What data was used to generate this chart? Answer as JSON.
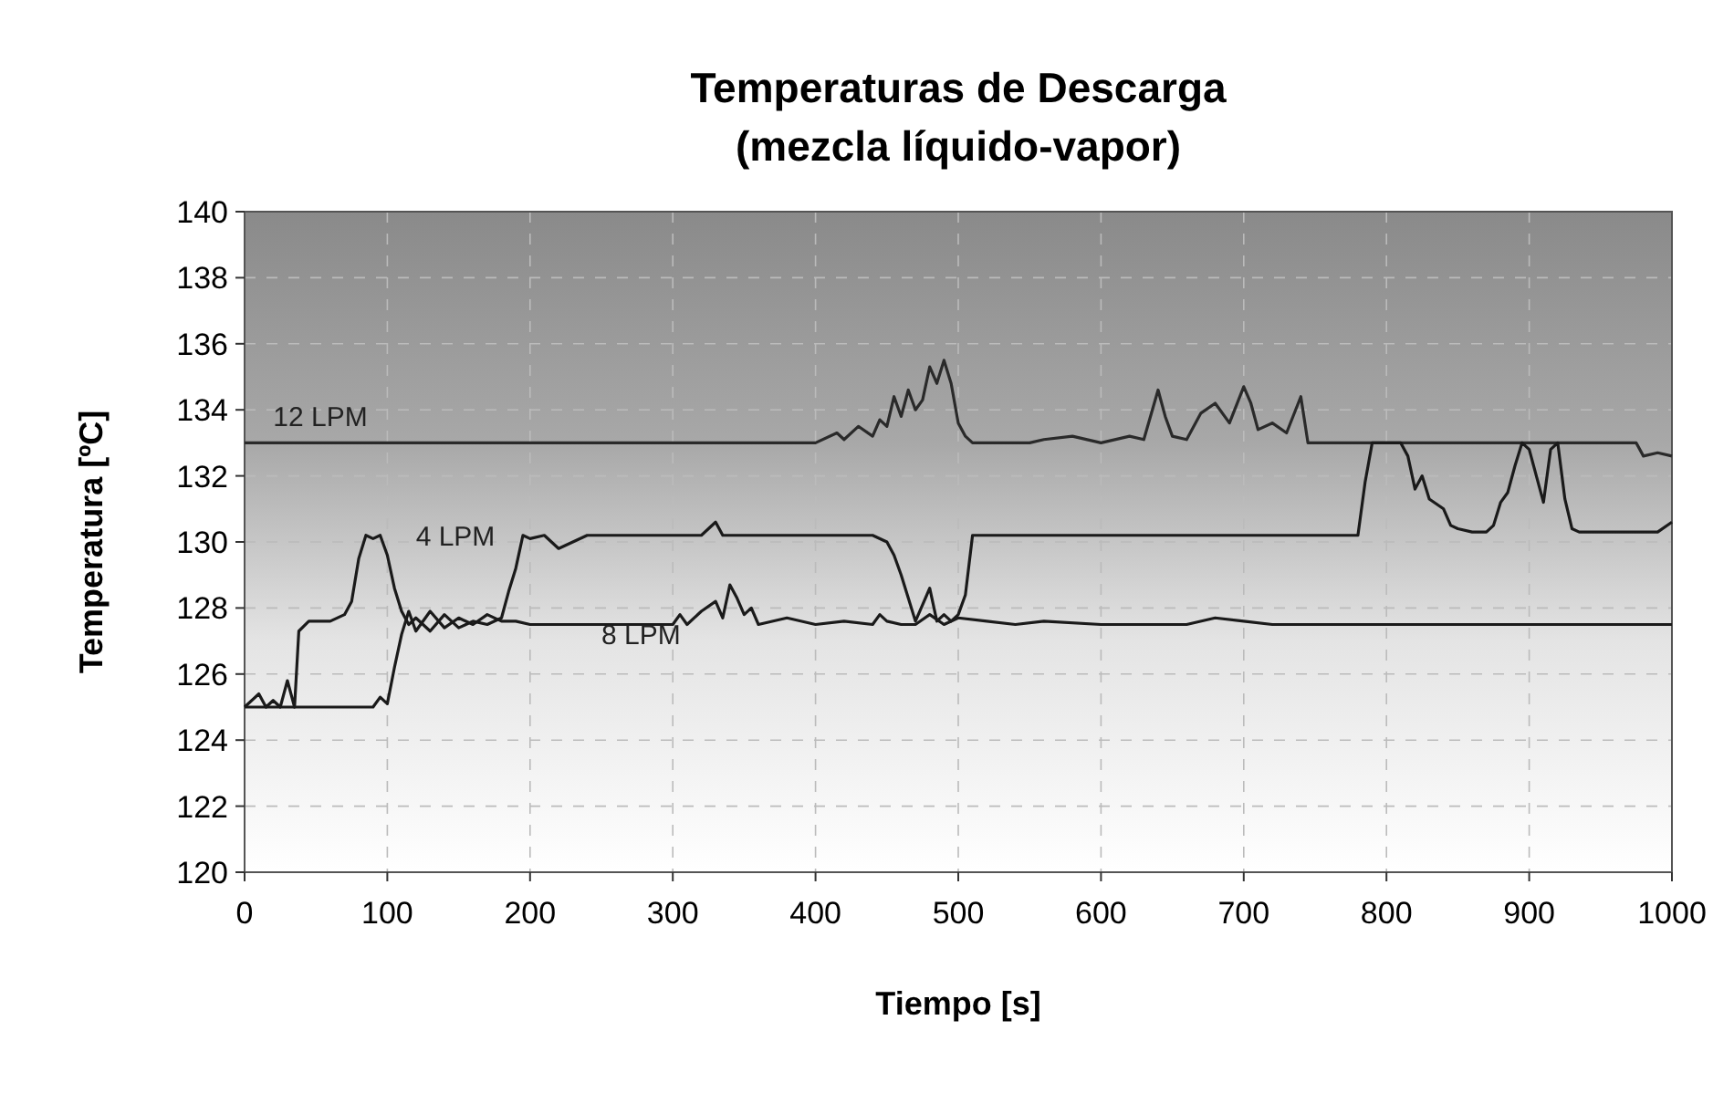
{
  "chart_data": {
    "type": "line",
    "title": "Temperaturas de Descarga",
    "subtitle": "(mezcla líquido-vapor)",
    "xlabel": "Tiempo [s]",
    "ylabel": "Temperatura [ºC]",
    "xlim": [
      0,
      1000
    ],
    "ylim": [
      120,
      140
    ],
    "xticks": [
      0,
      100,
      200,
      300,
      400,
      500,
      600,
      700,
      800,
      900,
      1000
    ],
    "yticks": [
      120,
      122,
      124,
      126,
      128,
      130,
      132,
      134,
      136,
      138,
      140
    ],
    "grid": true,
    "marker": "none",
    "line_style": "solid",
    "series": [
      {
        "name": "12 LPM",
        "color": "#2a2a2a",
        "x": [
          0,
          100,
          200,
          300,
          400,
          415,
          420,
          430,
          440,
          445,
          450,
          455,
          460,
          465,
          470,
          475,
          480,
          485,
          490,
          495,
          500,
          505,
          510,
          520,
          550,
          560,
          580,
          600,
          620,
          630,
          640,
          645,
          650,
          660,
          670,
          680,
          690,
          700,
          705,
          710,
          720,
          730,
          740,
          745,
          750,
          800,
          900,
          975,
          980,
          990,
          1000
        ],
        "values": [
          133,
          133,
          133,
          133,
          133,
          133.3,
          133.1,
          133.5,
          133.2,
          133.7,
          133.5,
          134.4,
          133.8,
          134.6,
          134.0,
          134.3,
          135.3,
          134.8,
          135.5,
          134.8,
          133.6,
          133.2,
          133,
          133,
          133,
          133.1,
          133.2,
          133,
          133.2,
          133.1,
          134.6,
          133.8,
          133.2,
          133.1,
          133.9,
          134.2,
          133.6,
          134.7,
          134.2,
          133.4,
          133.6,
          133.3,
          134.4,
          133,
          133,
          133,
          133,
          133,
          132.6,
          132.7,
          132.6
        ]
      },
      {
        "name": "4 LPM",
        "color": "#1a1a1a",
        "x": [
          0,
          10,
          15,
          20,
          25,
          30,
          35,
          38,
          45,
          60,
          70,
          75,
          80,
          85,
          90,
          95,
          100,
          105,
          110,
          115,
          120,
          130,
          140,
          150,
          160,
          170,
          180,
          185,
          190,
          195,
          200,
          210,
          220,
          240,
          300,
          320,
          330,
          335,
          340,
          400,
          420,
          440,
          450,
          455,
          460,
          465,
          470,
          475,
          480,
          485,
          490,
          495,
          500,
          505,
          510,
          520,
          600,
          700,
          780,
          785,
          790,
          810,
          815,
          820,
          825,
          830,
          840,
          845,
          850,
          860,
          870,
          875,
          880,
          885,
          890,
          895,
          900,
          905,
          910,
          915,
          920,
          925,
          930,
          935,
          940,
          990,
          1000
        ],
        "values": [
          125,
          125.4,
          125,
          125.2,
          125,
          125.8,
          125,
          127.3,
          127.6,
          127.6,
          127.8,
          128.2,
          129.5,
          130.2,
          130.1,
          130.2,
          129.6,
          128.6,
          127.9,
          127.5,
          127.7,
          127.3,
          127.8,
          127.4,
          127.6,
          127.5,
          127.7,
          128.5,
          129.2,
          130.2,
          130.1,
          130.2,
          129.8,
          130.2,
          130.2,
          130.2,
          130.6,
          130.2,
          130.2,
          130.2,
          130.2,
          130.2,
          130,
          129.6,
          129.0,
          128.3,
          127.6,
          128.1,
          128.6,
          127.6,
          127.8,
          127.6,
          127.8,
          128.4,
          130.2,
          130.2,
          130.2,
          130.2,
          130.2,
          131.8,
          133,
          133,
          132.6,
          131.6,
          132,
          131.3,
          131,
          130.5,
          130.4,
          130.3,
          130.3,
          130.5,
          131.2,
          131.5,
          132.3,
          133,
          132.8,
          132,
          131.2,
          132.8,
          133,
          131.3,
          130.4,
          130.3,
          130.3,
          130.3,
          130.6
        ]
      },
      {
        "name": "8 LPM",
        "color": "#1a1a1a",
        "x": [
          0,
          50,
          90,
          95,
          100,
          105,
          110,
          115,
          120,
          130,
          140,
          150,
          160,
          170,
          180,
          190,
          200,
          250,
          300,
          305,
          310,
          320,
          330,
          335,
          340,
          345,
          350,
          355,
          360,
          380,
          400,
          420,
          440,
          445,
          450,
          460,
          470,
          480,
          490,
          500,
          520,
          540,
          560,
          600,
          660,
          680,
          700,
          720,
          750,
          800,
          900,
          1000
        ],
        "values": [
          125,
          125,
          125,
          125.3,
          125.1,
          126.2,
          127.2,
          127.9,
          127.3,
          127.9,
          127.4,
          127.7,
          127.5,
          127.8,
          127.6,
          127.6,
          127.5,
          127.5,
          127.5,
          127.8,
          127.5,
          127.9,
          128.2,
          127.7,
          128.7,
          128.3,
          127.8,
          128.0,
          127.5,
          127.7,
          127.5,
          127.6,
          127.5,
          127.8,
          127.6,
          127.5,
          127.5,
          127.8,
          127.5,
          127.7,
          127.6,
          127.5,
          127.6,
          127.5,
          127.5,
          127.7,
          127.6,
          127.5,
          127.5,
          127.5,
          127.5,
          127.5
        ]
      }
    ]
  }
}
